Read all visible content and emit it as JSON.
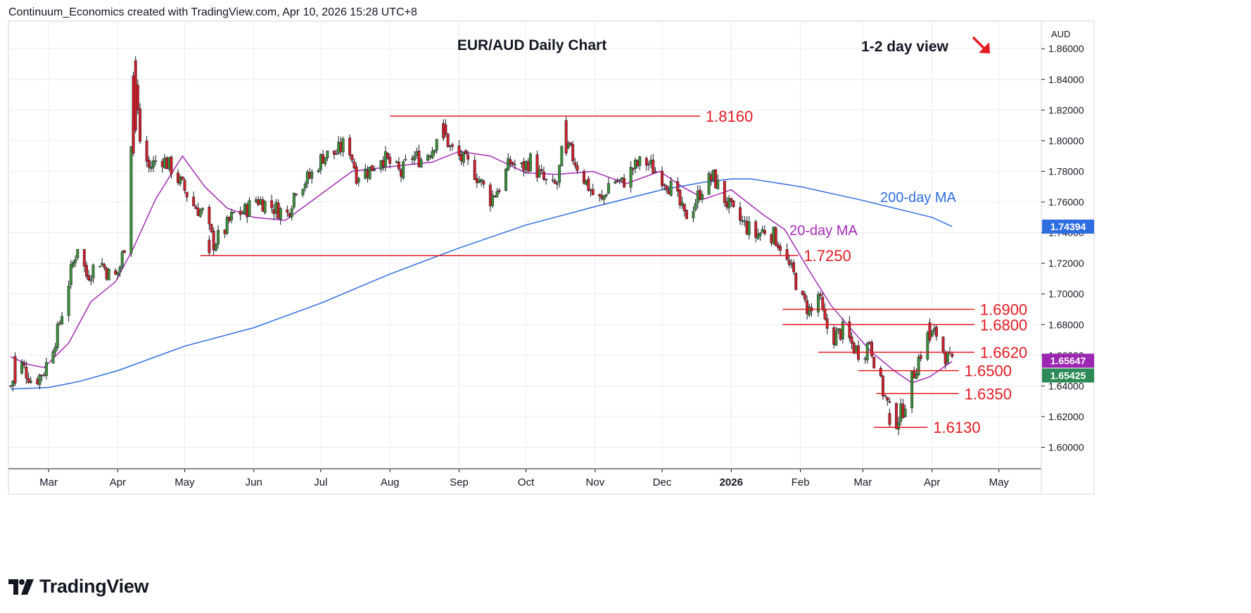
{
  "header": {
    "credit": "Continuum_Economics created with TradingView.com, Apr 10, 2026 15:28 UTC+8"
  },
  "footer": {
    "brand": "TradingView",
    "logo_icon": "tradingview-logo-icon"
  },
  "colors": {
    "up": "#3f8f3a",
    "down": "#d0202a",
    "wick": "#131722",
    "level": "#e31b23",
    "ma20": "#a62bb5",
    "ma200": "#2f6ee0",
    "grid": "#e9ecf2",
    "axis_text": "#131722",
    "badge_ma200": "#2f6ee0",
    "badge_ma20": "#9c27b0",
    "badge_last": "#2e8b57"
  },
  "chart_data": {
    "type": "candlestick",
    "title": "EUR/AUD Daily Chart",
    "annotation": {
      "text": "1-2 day view",
      "arrow": "down-right",
      "arrow_icon": "arrow-down-right-icon"
    },
    "currency": "AUD",
    "ylim": [
      1.586,
      1.878
    ],
    "y_ticks": [
      "1.86000",
      "1.84000",
      "1.82000",
      "1.80000",
      "1.78000",
      "1.76000",
      "1.74000",
      "1.72000",
      "1.70000",
      "1.68000",
      "1.66000",
      "1.64000",
      "1.62000",
      "1.60000"
    ],
    "x_ticks": [
      "Mar",
      "Apr",
      "May",
      "Jun",
      "Jul",
      "Aug",
      "Sep",
      "Oct",
      "Nov",
      "Dec",
      "2026",
      "Feb",
      "Mar",
      "Apr",
      "May"
    ],
    "x_range": [
      "2025-02-11",
      "2026-05-20"
    ],
    "price_path": [
      [
        "2025-02-12",
        1.64
      ],
      [
        "2025-02-16",
        1.656
      ],
      [
        "2025-02-22",
        1.642
      ],
      [
        "2025-02-27",
        1.65
      ],
      [
        "2025-03-05",
        1.675
      ],
      [
        "2025-03-10",
        1.708
      ],
      [
        "2025-03-14",
        1.732
      ],
      [
        "2025-03-18",
        1.712
      ],
      [
        "2025-03-24",
        1.722
      ],
      [
        "2025-03-30",
        1.708
      ],
      [
        "2025-04-02",
        1.718
      ],
      [
        "2025-04-04",
        1.732
      ],
      [
        "2025-04-07",
        1.8
      ],
      [
        "2025-04-09",
        1.836
      ],
      [
        "2025-04-11",
        1.8
      ],
      [
        "2025-04-15",
        1.782
      ],
      [
        "2025-04-20",
        1.79
      ],
      [
        "2025-04-25",
        1.782
      ],
      [
        "2025-04-30",
        1.77
      ],
      [
        "2025-05-05",
        1.758
      ],
      [
        "2025-05-09",
        1.753
      ],
      [
        "2025-05-14",
        1.733
      ],
      [
        "2025-05-19",
        1.742
      ],
      [
        "2025-05-23",
        1.752
      ],
      [
        "2025-05-28",
        1.754
      ],
      [
        "2025-06-02",
        1.762
      ],
      [
        "2025-06-09",
        1.757
      ],
      [
        "2025-06-16",
        1.752
      ],
      [
        "2025-06-20",
        1.77
      ],
      [
        "2025-06-26",
        1.776
      ],
      [
        "2025-07-02",
        1.79
      ],
      [
        "2025-07-08",
        1.792
      ],
      [
        "2025-07-13",
        1.8
      ],
      [
        "2025-07-17",
        1.778
      ],
      [
        "2025-07-23",
        1.781
      ],
      [
        "2025-07-28",
        1.79
      ],
      [
        "2025-08-01",
        1.785
      ],
      [
        "2025-08-06",
        1.778
      ],
      [
        "2025-08-10",
        1.79
      ],
      [
        "2025-08-15",
        1.788
      ],
      [
        "2025-08-20",
        1.795
      ],
      [
        "2025-08-24",
        1.811
      ],
      [
        "2025-08-28",
        1.795
      ],
      [
        "2025-09-02",
        1.788
      ],
      [
        "2025-09-07",
        1.782
      ],
      [
        "2025-09-11",
        1.772
      ],
      [
        "2025-09-15",
        1.762
      ],
      [
        "2025-09-19",
        1.77
      ],
      [
        "2025-09-24",
        1.786
      ],
      [
        "2025-09-29",
        1.782
      ],
      [
        "2025-10-03",
        1.787
      ],
      [
        "2025-10-07",
        1.778
      ],
      [
        "2025-10-12",
        1.768
      ],
      [
        "2025-10-15",
        1.772
      ],
      [
        "2025-10-18",
        1.8
      ],
      [
        "2025-10-21",
        1.792
      ],
      [
        "2025-10-26",
        1.778
      ],
      [
        "2025-10-31",
        1.765
      ],
      [
        "2025-11-04",
        1.76
      ],
      [
        "2025-11-08",
        1.776
      ],
      [
        "2025-11-13",
        1.772
      ],
      [
        "2025-11-18",
        1.782
      ],
      [
        "2025-11-23",
        1.787
      ],
      [
        "2025-11-27",
        1.782
      ],
      [
        "2025-12-02",
        1.775
      ],
      [
        "2025-12-07",
        1.765
      ],
      [
        "2025-12-11",
        1.75
      ],
      [
        "2025-12-15",
        1.758
      ],
      [
        "2025-12-20",
        1.772
      ],
      [
        "2025-12-24",
        1.776
      ],
      [
        "2025-12-29",
        1.762
      ],
      [
        "2026-01-02",
        1.752
      ],
      [
        "2026-01-07",
        1.745
      ],
      [
        "2026-01-12",
        1.738
      ],
      [
        "2026-01-16",
        1.742
      ],
      [
        "2026-01-20",
        1.738
      ],
      [
        "2026-01-23",
        1.732
      ],
      [
        "2026-01-26",
        1.72
      ],
      [
        "2026-01-29",
        1.712
      ],
      [
        "2026-02-02",
        1.695
      ],
      [
        "2026-02-06",
        1.688
      ],
      [
        "2026-02-09",
        1.7
      ],
      [
        "2026-02-12",
        1.68
      ],
      [
        "2026-02-16",
        1.672
      ],
      [
        "2026-02-20",
        1.676
      ],
      [
        "2026-02-25",
        1.665
      ],
      [
        "2026-03-01",
        1.66
      ],
      [
        "2026-03-04",
        1.67
      ],
      [
        "2026-03-08",
        1.645
      ],
      [
        "2026-03-12",
        1.628
      ],
      [
        "2026-03-15",
        1.615
      ],
      [
        "2026-03-19",
        1.625
      ],
      [
        "2026-03-22",
        1.64
      ],
      [
        "2026-03-26",
        1.658
      ],
      [
        "2026-03-30",
        1.672
      ],
      [
        "2026-04-03",
        1.674
      ],
      [
        "2026-04-07",
        1.66
      ],
      [
        "2026-04-10",
        1.654
      ]
    ],
    "extra_wicks": [
      [
        "2025-02-14",
        1.662,
        1.64
      ],
      [
        "2025-04-08",
        1.845,
        1.79
      ],
      [
        "2025-04-09",
        1.855,
        1.805
      ],
      [
        "2025-05-12",
        1.738,
        1.725
      ],
      [
        "2025-08-25",
        1.814,
        1.8
      ],
      [
        "2025-10-19",
        1.816,
        1.79
      ],
      [
        "2026-03-13",
        1.625,
        1.613
      ],
      [
        "2026-03-31",
        1.684,
        1.668
      ]
    ],
    "series": [
      {
        "name": "20-day MA",
        "points": [
          [
            "2025-02-12",
            1.659
          ],
          [
            "2025-02-20",
            1.654
          ],
          [
            "2025-02-27",
            1.652
          ],
          [
            "2025-03-10",
            1.668
          ],
          [
            "2025-03-20",
            1.695
          ],
          [
            "2025-03-31",
            1.708
          ],
          [
            "2025-04-08",
            1.73
          ],
          [
            "2025-04-18",
            1.762
          ],
          [
            "2025-04-30",
            1.79
          ],
          [
            "2025-05-10",
            1.77
          ],
          [
            "2025-05-20",
            1.756
          ],
          [
            "2025-06-01",
            1.75
          ],
          [
            "2025-06-15",
            1.748
          ],
          [
            "2025-07-01",
            1.765
          ],
          [
            "2025-07-15",
            1.78
          ],
          [
            "2025-08-01",
            1.783
          ],
          [
            "2025-08-20",
            1.786
          ],
          [
            "2025-09-01",
            1.793
          ],
          [
            "2025-09-15",
            1.79
          ],
          [
            "2025-10-01",
            1.779
          ],
          [
            "2025-10-15",
            1.778
          ],
          [
            "2025-10-31",
            1.78
          ],
          [
            "2025-11-15",
            1.772
          ],
          [
            "2025-11-30",
            1.78
          ],
          [
            "2025-12-10",
            1.77
          ],
          [
            "2025-12-20",
            1.762
          ],
          [
            "2026-01-01",
            1.768
          ],
          [
            "2026-01-15",
            1.752
          ],
          [
            "2026-01-25",
            1.742
          ],
          [
            "2026-02-05",
            1.715
          ],
          [
            "2026-02-15",
            1.692
          ],
          [
            "2026-02-25",
            1.675
          ],
          [
            "2026-03-05",
            1.662
          ],
          [
            "2026-03-15",
            1.65
          ],
          [
            "2026-03-23",
            1.642
          ],
          [
            "2026-03-31",
            1.646
          ],
          [
            "2026-04-10",
            1.656
          ]
        ]
      },
      {
        "name": "200-day MA",
        "points": [
          [
            "2025-02-12",
            1.638
          ],
          [
            "2025-03-01",
            1.639
          ],
          [
            "2025-03-15",
            1.643
          ],
          [
            "2025-04-01",
            1.65
          ],
          [
            "2025-05-01",
            1.666
          ],
          [
            "2025-06-01",
            1.678
          ],
          [
            "2025-07-01",
            1.694
          ],
          [
            "2025-08-01",
            1.713
          ],
          [
            "2025-09-01",
            1.73
          ],
          [
            "2025-10-01",
            1.745
          ],
          [
            "2025-11-01",
            1.757
          ],
          [
            "2025-12-01",
            1.768
          ],
          [
            "2025-12-20",
            1.773
          ],
          [
            "2026-01-01",
            1.775
          ],
          [
            "2026-01-10",
            1.775
          ],
          [
            "2026-02-01",
            1.77
          ],
          [
            "2026-03-01",
            1.761
          ],
          [
            "2026-04-01",
            1.75
          ],
          [
            "2026-04-10",
            1.744
          ]
        ]
      }
    ],
    "ma_labels": [
      {
        "name": "20-day MA",
        "text": "20-day MA"
      },
      {
        "name": "200-day MA",
        "text": "200-day MA"
      }
    ],
    "levels": [
      {
        "value": 1.816,
        "label": "1.8160",
        "from": "2025-08-01",
        "to": "2025-12-18"
      },
      {
        "value": 1.725,
        "label": "1.7250",
        "from": "2025-05-08",
        "to": "2026-01-31"
      },
      {
        "value": 1.69,
        "label": "1.6900",
        "from": "2026-01-24",
        "to": "2026-04-20"
      },
      {
        "value": 1.68,
        "label": "1.6800",
        "from": "2026-01-24",
        "to": "2026-04-20"
      },
      {
        "value": 1.662,
        "label": "1.6620",
        "from": "2026-02-09",
        "to": "2026-04-20"
      },
      {
        "value": 1.65,
        "label": "1.6500",
        "from": "2026-02-27",
        "to": "2026-04-13"
      },
      {
        "value": 1.635,
        "label": "1.6350",
        "from": "2026-03-07",
        "to": "2026-04-13"
      },
      {
        "value": 1.613,
        "label": "1.6130",
        "from": "2026-03-06",
        "to": "2026-03-30"
      }
    ],
    "price_badges": [
      {
        "name": "200-day MA",
        "text": "1.74394",
        "value": 1.74394
      },
      {
        "name": "20-day MA",
        "text": "1.65647",
        "value": 1.65647
      },
      {
        "name": "last",
        "text": "1.65425",
        "value": 1.65425
      }
    ],
    "grid": true
  }
}
